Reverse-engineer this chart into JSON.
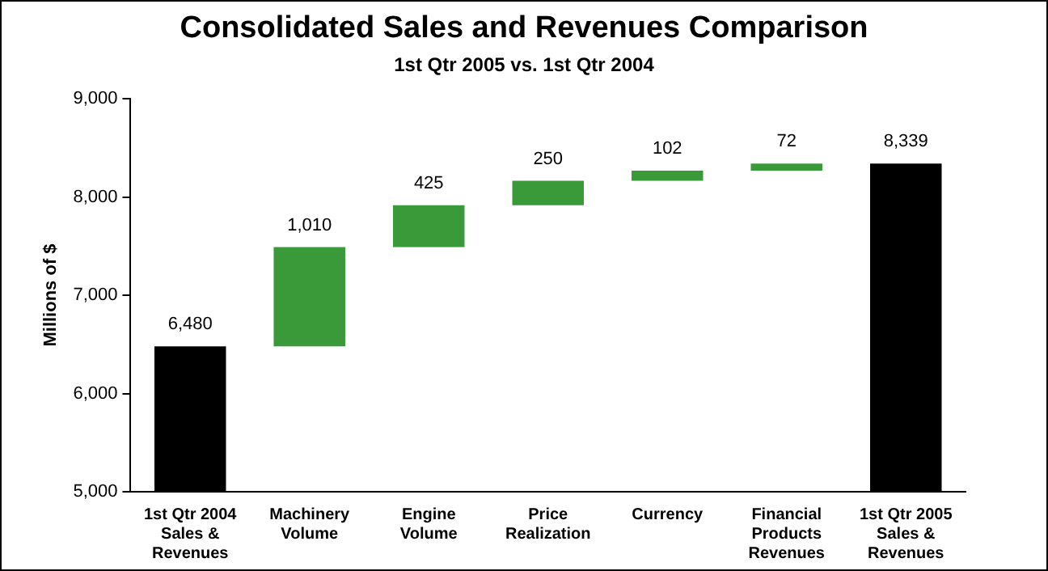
{
  "chart_data": {
    "type": "bar",
    "title": "Consolidated Sales and Revenues Comparison",
    "subtitle": "1st Qtr 2005 vs. 1st Qtr 2004",
    "ylabel": "Millions of $",
    "categories": [
      "1st Qtr 2004 Sales & Revenues",
      "Machinery Volume",
      "Engine Volume",
      "Price Realization",
      "Currency",
      "Financial Products Revenues",
      "1st Qtr 2005 Sales & Revenues"
    ],
    "values": [
      6480,
      1010,
      425,
      250,
      102,
      72,
      8339
    ],
    "base": [
      null,
      6480,
      7490,
      7915,
      8165,
      8267,
      null
    ],
    "colors": [
      "#000000",
      "#3a9a3a",
      "#3a9a3a",
      "#3a9a3a",
      "#3a9a3a",
      "#3a9a3a",
      "#000000"
    ],
    "value_labels": [
      "6,480",
      "1,010",
      "425",
      "250",
      "102",
      "72",
      "8,339"
    ],
    "ylim": [
      5000,
      9000
    ],
    "yticks": [
      {
        "value": 5000,
        "label": "5,000"
      },
      {
        "value": 6000,
        "label": "6,000"
      },
      {
        "value": 7000,
        "label": "7,000"
      },
      {
        "value": 8000,
        "label": "8,000"
      },
      {
        "value": 9000,
        "label": "9,000"
      }
    ],
    "grid": false,
    "legend": false
  }
}
